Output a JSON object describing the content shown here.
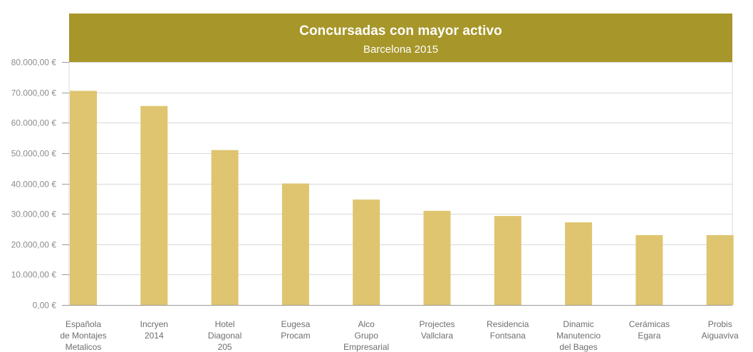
{
  "chart_data": {
    "type": "bar",
    "title": "Concursadas con mayor activo",
    "subtitle": "Barcelona 2015",
    "categories": [
      [
        "Española",
        "de Montajes",
        "Metalicos"
      ],
      [
        "Incryen",
        "2014"
      ],
      [
        "Hotel",
        "Diagonal",
        "205"
      ],
      [
        "Eugesa",
        "Procam"
      ],
      [
        "Alco",
        "Grupo",
        "Empresarial"
      ],
      [
        "Projectes",
        "Vallclara"
      ],
      [
        "Residencia",
        "Fontsana"
      ],
      [
        "Dinamic",
        "Manutencio",
        "del Bages"
      ],
      [
        "Cerámicas",
        "Egara"
      ],
      [
        "Probis",
        "Aiguaviva"
      ]
    ],
    "values": [
      70500,
      65500,
      51000,
      40000,
      34700,
      31000,
      29300,
      27200,
      23000,
      23000
    ],
    "yticks": [
      "0,00 €",
      "10.000,00 €",
      "20.000,00 €",
      "30.000,00 €",
      "40.000,00 €",
      "50.000,00 €",
      "60.000,00 €",
      "70.000,00 €",
      "80.000,00 €"
    ],
    "ylim": [
      0,
      80000
    ],
    "grid": true,
    "bar_color": "#dfc56f",
    "header_color": "#a79629",
    "gridline_color": "#d9d9d9"
  }
}
